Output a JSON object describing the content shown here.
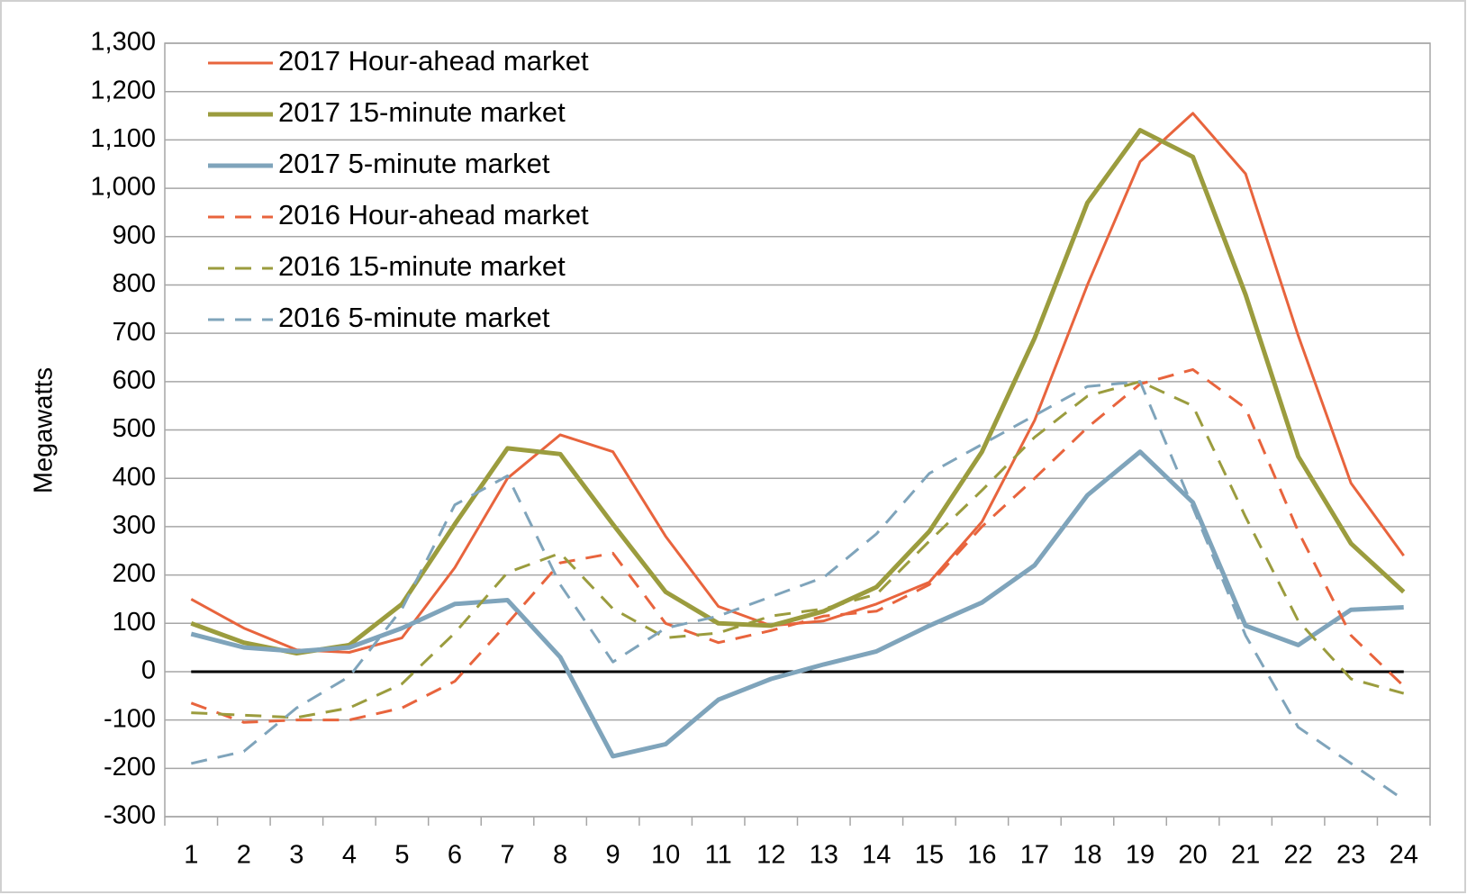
{
  "chart_data": {
    "type": "line",
    "y_label": "Megawatts",
    "categories": [
      "1",
      "2",
      "3",
      "4",
      "5",
      "6",
      "7",
      "8",
      "9",
      "10",
      "11",
      "12",
      "13",
      "14",
      "15",
      "16",
      "17",
      "18",
      "19",
      "20",
      "21",
      "22",
      "23",
      "24"
    ],
    "series": [
      {
        "name": "2017 Hour-ahead market",
        "color": "#e8643d",
        "line_style": "solid",
        "line_width": 3,
        "values": [
          150,
          90,
          45,
          40,
          70,
          215,
          400,
          490,
          455,
          280,
          135,
          95,
          105,
          140,
          185,
          310,
          520,
          800,
          1055,
          1155,
          1030,
          695,
          390,
          240
        ]
      },
      {
        "name": "2017 15-minute market",
        "color": "#9b9c3e",
        "line_style": "solid",
        "line_width": 5,
        "values": [
          100,
          60,
          38,
          55,
          140,
          305,
          462,
          450,
          305,
          165,
          100,
          95,
          125,
          175,
          290,
          455,
          690,
          970,
          1120,
          1065,
          780,
          445,
          265,
          165
        ]
      },
      {
        "name": "2017 5-minute market",
        "color": "#7fa4bb",
        "line_style": "solid",
        "line_width": 5,
        "values": [
          78,
          50,
          42,
          50,
          90,
          140,
          148,
          30,
          -175,
          -150,
          -58,
          -15,
          15,
          42,
          95,
          143,
          220,
          365,
          455,
          350,
          95,
          55,
          128,
          133
        ]
      },
      {
        "name": "2016 Hour-ahead market",
        "color": "#e8643d",
        "line_style": "dashed",
        "line_width": 3,
        "values": [
          -65,
          -105,
          -100,
          -100,
          -75,
          -20,
          100,
          225,
          245,
          100,
          60,
          85,
          115,
          125,
          180,
          300,
          400,
          505,
          595,
          625,
          545,
          290,
          75,
          -30
        ]
      },
      {
        "name": "2016 15-minute market",
        "color": "#9b9c3e",
        "line_style": "dashed",
        "line_width": 3,
        "values": [
          -85,
          -90,
          -95,
          -75,
          -25,
          80,
          205,
          245,
          130,
          70,
          80,
          115,
          130,
          160,
          270,
          375,
          485,
          570,
          600,
          550,
          320,
          105,
          -15,
          -45
        ]
      },
      {
        "name": "2016 5-minute market",
        "color": "#7fa4bb",
        "line_style": "dashed",
        "line_width": 3,
        "values": [
          -190,
          -165,
          -75,
          -10,
          130,
          345,
          405,
          180,
          20,
          90,
          115,
          155,
          195,
          285,
          410,
          470,
          530,
          590,
          600,
          340,
          75,
          -115,
          -190,
          -265
        ]
      }
    ],
    "ylim": [
      -300,
      1300
    ],
    "yticks": [
      -300,
      -200,
      -100,
      0,
      100,
      200,
      300,
      400,
      500,
      600,
      700,
      800,
      900,
      {
        "value": 1000,
        "label": "1,000"
      },
      {
        "value": 1100,
        "label": "1,100"
      },
      {
        "value": 1200,
        "label": "1,200"
      },
      {
        "value": 1300,
        "label": "1,300"
      }
    ],
    "grid": true,
    "reference_line": {
      "value": 0,
      "color": "#000000"
    },
    "legend": "upper left"
  }
}
